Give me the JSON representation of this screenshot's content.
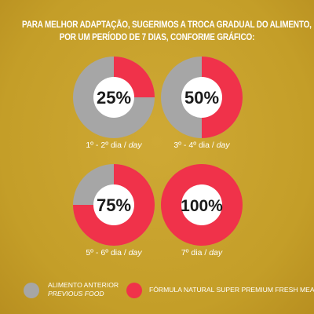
{
  "header": {
    "line1": "PARA MELHOR ADAPTAÇÃO, SUGERIMOS A TROCA GRADUAL DO ALIMENTO,",
    "line2": "POR UM PERÍODO DE 7 DIAS, CONFORME GRÁFICO:"
  },
  "colors": {
    "previous_food": "#a6a6a6",
    "new_food": "#f0324a",
    "center": "#ffffff",
    "background": "#c8a22c"
  },
  "chart_data": {
    "type": "pie",
    "series_names": [
      "ALIMENTO ANTERIOR",
      "FÓRMULA NATURAL SUPER PREMIUM FRESH MEAT"
    ],
    "charts": [
      {
        "label": "25%",
        "new_food_pct": 25,
        "previous_food_pct": 75,
        "caption_pt": "1º - 2º dia / ",
        "caption_en": "day"
      },
      {
        "label": "50%",
        "new_food_pct": 50,
        "previous_food_pct": 50,
        "caption_pt": "3º - 4º dia / ",
        "caption_en": "day"
      },
      {
        "label": "75%",
        "new_food_pct": 75,
        "previous_food_pct": 25,
        "caption_pt": "5º - 6º dia / ",
        "caption_en": "day"
      },
      {
        "label": "100%",
        "new_food_pct": 100,
        "previous_food_pct": 0,
        "caption_pt": "7º dia / ",
        "caption_en": "day"
      }
    ]
  },
  "legend": {
    "previous_food_pt": "ALIMENTO ANTERIOR",
    "previous_food_en": "PREVIOUS FOOD",
    "new_food": "FÓRMULA NATURAL SUPER PREMIUM FRESH MEAT"
  }
}
